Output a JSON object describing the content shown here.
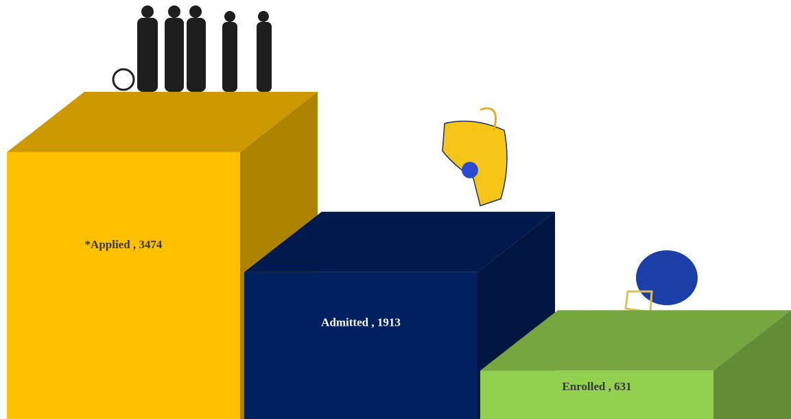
{
  "chart_data": {
    "type": "bar3d",
    "labels": [
      "*Applied , 3474",
      "Admitted , 1913",
      "Enrolled , 631"
    ],
    "values": [
      3474,
      1913,
      631
    ],
    "colors": [
      "#ffc000",
      "#002060",
      "#92d050"
    ]
  }
}
